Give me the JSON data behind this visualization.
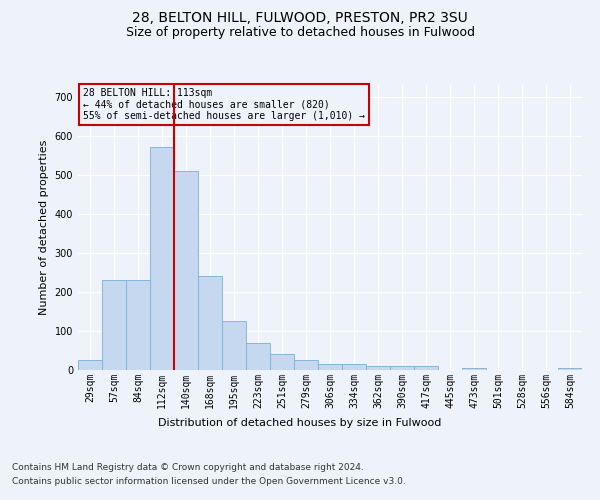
{
  "title1": "28, BELTON HILL, FULWOOD, PRESTON, PR2 3SU",
  "title2": "Size of property relative to detached houses in Fulwood",
  "xlabel": "Distribution of detached houses by size in Fulwood",
  "ylabel": "Number of detached properties",
  "footer1": "Contains HM Land Registry data © Crown copyright and database right 2024.",
  "footer2": "Contains public sector information licensed under the Open Government Licence v3.0.",
  "annotation_title": "28 BELTON HILL: 113sqm",
  "annotation_line1": "← 44% of detached houses are smaller (820)",
  "annotation_line2": "55% of semi-detached houses are larger (1,010) →",
  "bar_color": "#c5d8f0",
  "bar_edge_color": "#7bafd4",
  "redline_color": "#cc0000",
  "annotation_box_edge": "#cc0000",
  "categories": [
    "29sqm",
    "57sqm",
    "84sqm",
    "112sqm",
    "140sqm",
    "168sqm",
    "195sqm",
    "223sqm",
    "251sqm",
    "279sqm",
    "306sqm",
    "334sqm",
    "362sqm",
    "390sqm",
    "417sqm",
    "445sqm",
    "473sqm",
    "501sqm",
    "528sqm",
    "556sqm",
    "584sqm"
  ],
  "values": [
    25,
    230,
    230,
    570,
    510,
    240,
    125,
    70,
    40,
    25,
    15,
    15,
    10,
    10,
    10,
    0,
    5,
    0,
    0,
    0,
    5
  ],
  "redline_x": 3.5,
  "ylim": [
    0,
    730
  ],
  "yticks": [
    0,
    100,
    200,
    300,
    400,
    500,
    600,
    700
  ],
  "figsize": [
    6.0,
    5.0
  ],
  "dpi": 100,
  "background_color": "#eef2fa",
  "title1_fontsize": 10,
  "title2_fontsize": 9,
  "axis_label_fontsize": 8,
  "tick_fontsize": 7,
  "footer_fontsize": 6.5
}
